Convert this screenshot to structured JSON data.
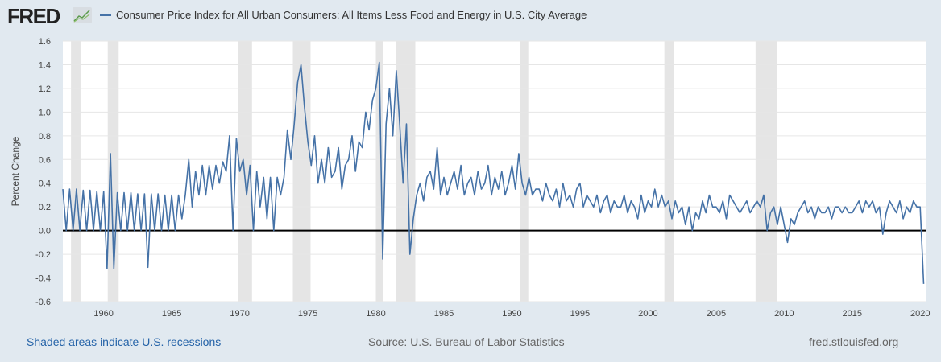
{
  "header": {
    "logo": "FRED",
    "series_title": "Consumer Price Index for All Urban Consumers: All Items Less Food and Energy in U.S. City Average"
  },
  "footer": {
    "recession_note": "Shaded areas indicate U.S. recessions",
    "source": "Source: U.S. Bureau of Labor Statistics",
    "site": "fred.stlouisfed.org"
  },
  "colors": {
    "line": "#4572a7",
    "recession": "#e5e5e5",
    "background": "#e1e9f0"
  },
  "chart_data": {
    "type": "line",
    "title": "Consumer Price Index for All Urban Consumers: All Items Less Food and Energy in U.S. City Average",
    "xlabel": "",
    "ylabel": "Percent Change",
    "xlim": [
      1957.0,
      2020.4
    ],
    "ylim": [
      -0.6,
      1.6
    ],
    "yticks": [
      "-0.6",
      "-0.4",
      "-0.2",
      "0.0",
      "0.2",
      "0.4",
      "0.6",
      "0.8",
      "1.0",
      "1.2",
      "1.4",
      "1.6"
    ],
    "xticks": [
      "1960",
      "1965",
      "1970",
      "1975",
      "1980",
      "1985",
      "1990",
      "1995",
      "2000",
      "2005",
      "2010",
      "2015",
      "2020"
    ],
    "grid": true,
    "recessions": [
      [
        1957.6,
        1958.3
      ],
      [
        1960.3,
        1961.1
      ],
      [
        1969.9,
        1970.9
      ],
      [
        1973.9,
        1975.2
      ],
      [
        1980.0,
        1980.5
      ],
      [
        1981.5,
        1982.9
      ],
      [
        1990.6,
        1991.2
      ],
      [
        2001.2,
        2001.9
      ],
      [
        2007.9,
        2009.5
      ]
    ],
    "series": [
      {
        "name": "Consumer Price Index for All Urban Consumers: All Items Less Food and Energy in U.S. City Average",
        "start": 1957.0,
        "step": 0.25,
        "values": [
          0.35,
          0,
          0.35,
          0,
          0.35,
          0,
          0.34,
          0,
          0.34,
          0,
          0.33,
          0,
          0.33,
          -0.32,
          0.65,
          -0.32,
          0.32,
          0,
          0.32,
          0,
          0.32,
          0,
          0.31,
          0,
          0.31,
          -0.31,
          0.31,
          0,
          0.31,
          0,
          0.3,
          0,
          0.3,
          0,
          0.3,
          0.1,
          0.3,
          0.6,
          0.2,
          0.5,
          0.3,
          0.55,
          0.3,
          0.55,
          0.35,
          0.55,
          0.4,
          0.58,
          0.5,
          0.8,
          0,
          0.78,
          0.5,
          0.6,
          0.3,
          0.55,
          0,
          0.5,
          0.2,
          0.45,
          0.1,
          0.45,
          0,
          0.45,
          0.3,
          0.45,
          0.85,
          0.6,
          0.9,
          1.25,
          1.4,
          1.05,
          0.75,
          0.55,
          0.8,
          0.4,
          0.6,
          0.4,
          0.7,
          0.45,
          0.5,
          0.7,
          0.35,
          0.55,
          0.6,
          0.8,
          0.5,
          0.75,
          0.7,
          1.0,
          0.85,
          1.1,
          1.2,
          1.42,
          -0.24,
          0.9,
          1.2,
          0.8,
          1.35,
          0.9,
          0.4,
          0.9,
          -0.2,
          0.1,
          0.3,
          0.4,
          0.25,
          0.45,
          0.5,
          0.35,
          0.7,
          0.3,
          0.45,
          0.3,
          0.4,
          0.5,
          0.35,
          0.55,
          0.3,
          0.4,
          0.45,
          0.3,
          0.5,
          0.35,
          0.4,
          0.55,
          0.3,
          0.45,
          0.35,
          0.5,
          0.3,
          0.4,
          0.55,
          0.35,
          0.65,
          0.4,
          0.3,
          0.45,
          0.3,
          0.35,
          0.35,
          0.25,
          0.4,
          0.3,
          0.25,
          0.35,
          0.2,
          0.4,
          0.25,
          0.3,
          0.2,
          0.35,
          0.4,
          0.2,
          0.3,
          0.25,
          0.2,
          0.3,
          0.15,
          0.25,
          0.3,
          0.15,
          0.25,
          0.2,
          0.2,
          0.3,
          0.15,
          0.25,
          0.2,
          0.1,
          0.3,
          0.15,
          0.25,
          0.2,
          0.35,
          0.2,
          0.3,
          0.2,
          0.25,
          0.1,
          0.25,
          0.15,
          0.2,
          0.05,
          0.2,
          0,
          0.15,
          0.1,
          0.25,
          0.15,
          0.3,
          0.2,
          0.2,
          0.15,
          0.25,
          0.1,
          0.3,
          0.25,
          0.2,
          0.15,
          0.2,
          0.25,
          0.15,
          0.2,
          0.25,
          0.2,
          0.3,
          0,
          0.15,
          0.2,
          0.05,
          0.2,
          0.05,
          -0.1,
          0.1,
          0.05,
          0.15,
          0.2,
          0.25,
          0.15,
          0.2,
          0.1,
          0.2,
          0.15,
          0.15,
          0.2,
          0.1,
          0.2,
          0.2,
          0.15,
          0.2,
          0.15,
          0.15,
          0.2,
          0.25,
          0.15,
          0.25,
          0.2,
          0.25,
          0.15,
          0.2,
          -0.03,
          0.15,
          0.25,
          0.2,
          0.15,
          0.25,
          0.1,
          0.2,
          0.15,
          0.25,
          0.2,
          0.2,
          -0.45
        ]
      }
    ]
  }
}
